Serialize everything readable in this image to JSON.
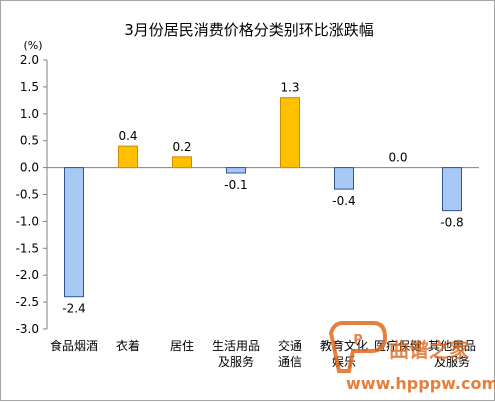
{
  "chart_data": {
    "type": "bar",
    "title": "3月份居民消费价格分类别环比涨跌幅",
    "unit_label": "(%)",
    "ylim": [
      -3.0,
      2.0
    ],
    "yticks": [
      "2.0",
      "1.5",
      "1.0",
      "0.5",
      "0.0",
      "-0.5",
      "-1.0",
      "-1.5",
      "-2.0",
      "-2.5",
      "-3.0"
    ],
    "ytick_values": [
      2.0,
      1.5,
      1.0,
      0.5,
      0.0,
      -0.5,
      -1.0,
      -1.5,
      -2.0,
      -2.5,
      -3.0
    ],
    "categories": [
      [
        "食品烟酒"
      ],
      [
        "衣着"
      ],
      [
        "居住"
      ],
      [
        "生活用品",
        "及服务"
      ],
      [
        "交通",
        "通信"
      ],
      [
        "教育文化",
        "娱乐"
      ],
      [
        "医疗保健"
      ],
      [
        "其他用品",
        "及服务"
      ]
    ],
    "values": [
      -2.4,
      0.4,
      0.2,
      -0.1,
      1.3,
      -0.4,
      0.0,
      -0.8
    ],
    "value_labels": [
      "-2.4",
      "0.4",
      "0.2",
      "-0.1",
      "1.3",
      "-0.4",
      "0.0",
      "-0.8"
    ],
    "grid": false,
    "colors": {
      "positive_fill": "#ffc000",
      "positive_stroke": "#d08c00",
      "negative_fill": "#a9c9f5",
      "negative_stroke": "#2f5597",
      "axis": "#808080"
    }
  },
  "watermark": {
    "brand_text": "曲谱之家",
    "url": "www.hpppw.com",
    "logo_letter": "P"
  }
}
